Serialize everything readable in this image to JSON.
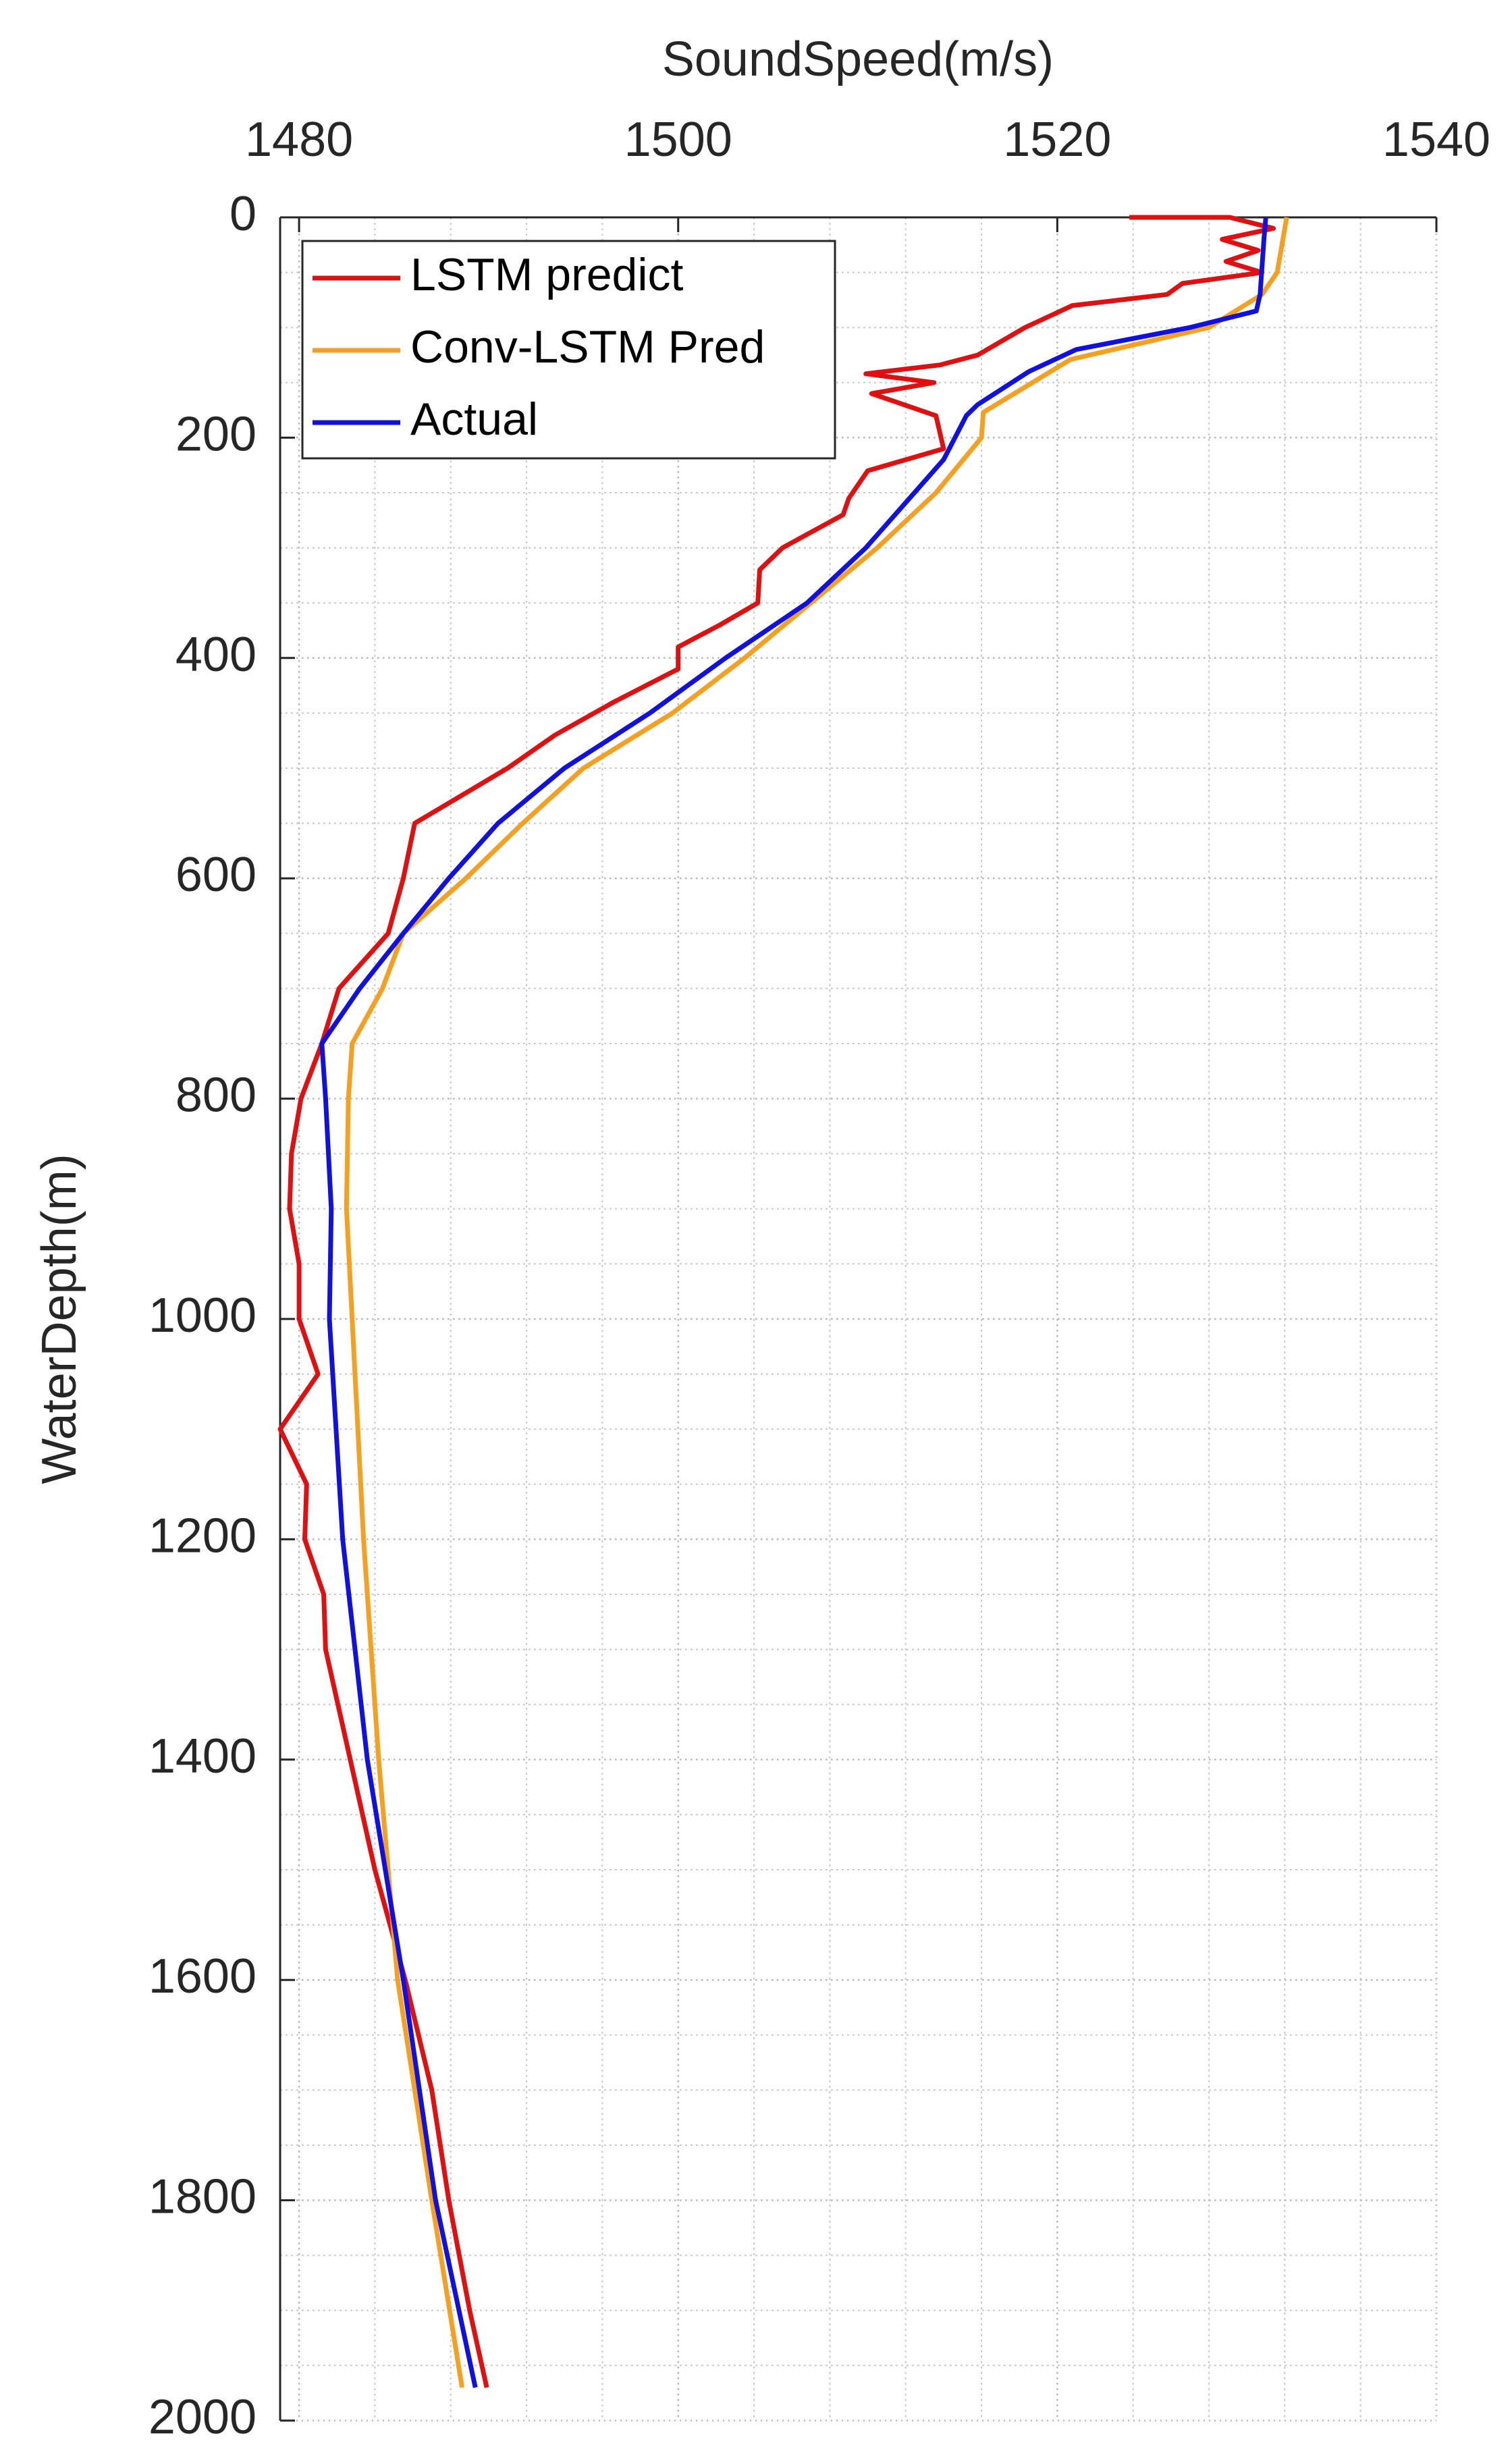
{
  "chart_data": {
    "type": "line",
    "x_label": "SoundSpeed(m/s)",
    "y_label": "WaterDepth(m)",
    "xlim": [
      1479,
      1540
    ],
    "xticks": [
      1480,
      1500,
      1520,
      1540
    ],
    "ylim": [
      0,
      2000
    ],
    "yticks": [
      0,
      200,
      400,
      600,
      800,
      1000,
      1200,
      1400,
      1600,
      1800,
      2000
    ],
    "y_reversed": true,
    "x_axis_position": "top",
    "grid": true,
    "minor_grid": true,
    "legend_position": "upper left",
    "series": [
      {
        "name": "LSTM predict",
        "color": "#e01010",
        "depth": [
          0,
          0,
          10,
          20,
          30,
          40,
          50,
          60,
          70,
          80,
          100,
          125,
          134,
          142,
          150,
          160,
          180,
          210,
          230,
          255,
          270,
          300,
          320,
          350,
          370,
          390,
          410,
          440,
          470,
          500,
          550,
          600,
          650,
          700,
          750,
          800,
          850,
          900,
          950,
          1000,
          1050,
          1100,
          1150,
          1200,
          1250,
          1300,
          1400,
          1500,
          1600,
          1700,
          1800,
          1900,
          1970
        ],
        "values": [
          1523.8,
          1529.1,
          1531.4,
          1528.7,
          1530.6,
          1528.9,
          1530.8,
          1526.6,
          1525.8,
          1520.8,
          1518.3,
          1515.8,
          1513.8,
          1509.9,
          1513.5,
          1510.2,
          1513.6,
          1514.0,
          1510.0,
          1509.0,
          1508.7,
          1505.5,
          1504.3,
          1504.2,
          1502.2,
          1500.0,
          1500.0,
          1496.6,
          1493.5,
          1491.0,
          1486.1,
          1485.5,
          1484.7,
          1482.1,
          1481.2,
          1480.1,
          1479.6,
          1479.5,
          1480.0,
          1480.0,
          1481.0,
          1479.0,
          1480.4,
          1480.3,
          1481.3,
          1481.4,
          1482.7,
          1484.0,
          1485.6,
          1487.0,
          1487.9,
          1489.0,
          1489.9
        ]
      },
      {
        "name": "Conv-LSTM Pred",
        "color": "#f5a020",
        "depth": [
          0,
          50,
          70,
          100,
          129,
          177,
          200,
          250,
          300,
          350,
          400,
          450,
          500,
          550,
          600,
          650,
          700,
          750,
          800,
          900,
          1000,
          1200,
          1400,
          1600,
          1800,
          1970
        ],
        "values": [
          1532.1,
          1531.6,
          1530.8,
          1528.0,
          1520.7,
          1516.1,
          1516.0,
          1513.6,
          1510.5,
          1507.0,
          1503.5,
          1499.7,
          1495.0,
          1491.8,
          1488.8,
          1485.5,
          1484.4,
          1482.8,
          1482.6,
          1482.5,
          1482.8,
          1483.4,
          1484.2,
          1485.2,
          1487.0,
          1488.6
        ]
      },
      {
        "name": "Actual",
        "color": "#1010e0",
        "depth": [
          0,
          20,
          70,
          85,
          100,
          120,
          140,
          170,
          180,
          220,
          300,
          350,
          400,
          450,
          500,
          550,
          600,
          650,
          700,
          750,
          800,
          900,
          1000,
          1200,
          1400,
          1600,
          1800,
          1970
        ],
        "values": [
          1531.0,
          1530.9,
          1530.7,
          1530.5,
          1527.0,
          1521.0,
          1518.5,
          1515.8,
          1515.2,
          1514.0,
          1509.9,
          1506.8,
          1502.5,
          1498.5,
          1494.0,
          1490.5,
          1487.9,
          1485.5,
          1483.2,
          1481.2,
          1481.4,
          1481.7,
          1481.6,
          1482.3,
          1483.6,
          1485.5,
          1487.2,
          1489.3
        ]
      }
    ]
  }
}
